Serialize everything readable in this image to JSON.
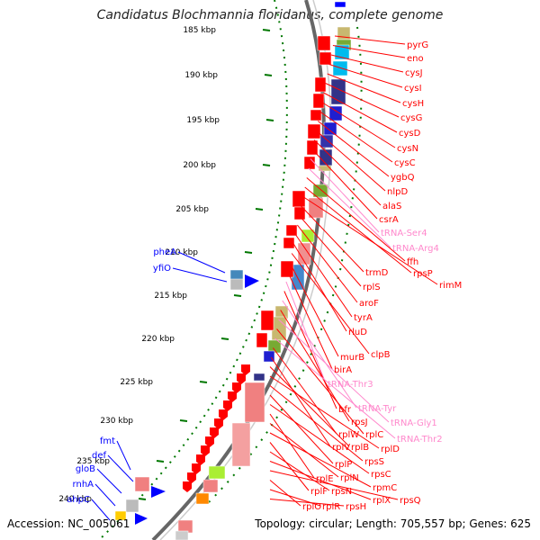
{
  "title": "Candidatus Blochmannia floridanus, complete genome",
  "accession_label": "Accession: NC_005061",
  "summary_label": "Topology: circular; Length: 705,557 bp; Genes: 625",
  "colors": {
    "red_gene": "#ff0000",
    "blue_gene": "#0000ff",
    "trna_label": "#ff88cc",
    "tick": "#007700",
    "backbone": "#888888"
  },
  "kbp_labels": [
    "185 kbp",
    "190 kbp",
    "195 kbp",
    "200 kbp",
    "205 kbp",
    "210 kbp",
    "215 kbp",
    "220 kbp",
    "225 kbp",
    "230 kbp",
    "235 kbp",
    "240 kbp"
  ],
  "right_labels": [
    {
      "text": "pyrG",
      "kind": "gene"
    },
    {
      "text": "eno",
      "kind": "gene"
    },
    {
      "text": "cysJ",
      "kind": "gene"
    },
    {
      "text": "cysI",
      "kind": "gene"
    },
    {
      "text": "cysH",
      "kind": "gene"
    },
    {
      "text": "cysG",
      "kind": "gene"
    },
    {
      "text": "cysD",
      "kind": "gene"
    },
    {
      "text": "cysN",
      "kind": "gene"
    },
    {
      "text": "cysC",
      "kind": "gene"
    },
    {
      "text": "ygbQ",
      "kind": "gene"
    },
    {
      "text": "nlpD",
      "kind": "gene"
    },
    {
      "text": "alaS",
      "kind": "gene"
    },
    {
      "text": "csrA",
      "kind": "gene"
    },
    {
      "text": "tRNA-Ser4",
      "kind": "trna"
    },
    {
      "text": "tRNA-Arg4",
      "kind": "trna"
    },
    {
      "text": "ffh",
      "kind": "gene"
    },
    {
      "text": "rpsP",
      "kind": "gene"
    },
    {
      "text": "rimM",
      "kind": "gene"
    },
    {
      "text": "trmD",
      "kind": "gene"
    },
    {
      "text": "rplS",
      "kind": "gene"
    },
    {
      "text": "aroF",
      "kind": "gene"
    },
    {
      "text": "tyrA",
      "kind": "gene"
    },
    {
      "text": "rluD",
      "kind": "gene"
    },
    {
      "text": "clpB",
      "kind": "gene"
    },
    {
      "text": "murB",
      "kind": "gene"
    },
    {
      "text": "birA",
      "kind": "gene"
    },
    {
      "text": "tRNA-Thr3",
      "kind": "trna"
    },
    {
      "text": "bfr",
      "kind": "gene"
    },
    {
      "text": "tRNA-Tyr",
      "kind": "trna"
    },
    {
      "text": "rpsJ",
      "kind": "gene"
    },
    {
      "text": "tRNA-Gly1",
      "kind": "trna"
    },
    {
      "text": "rplC",
      "kind": "gene"
    },
    {
      "text": "tRNA-Thr2",
      "kind": "trna"
    },
    {
      "text": "rplW",
      "kind": "gene"
    },
    {
      "text": "rplV",
      "kind": "gene"
    },
    {
      "text": "rplB",
      "kind": "gene"
    },
    {
      "text": "rplD",
      "kind": "gene"
    },
    {
      "text": "rpsS",
      "kind": "gene"
    },
    {
      "text": "rplP",
      "kind": "gene"
    },
    {
      "text": "rpsC",
      "kind": "gene"
    },
    {
      "text": "rplE",
      "kind": "gene"
    },
    {
      "text": "rplN",
      "kind": "gene"
    },
    {
      "text": "rpmC",
      "kind": "gene"
    },
    {
      "text": "rplF",
      "kind": "gene"
    },
    {
      "text": "rpsN",
      "kind": "gene"
    },
    {
      "text": "rplX",
      "kind": "gene"
    },
    {
      "text": "rpsQ",
      "kind": "gene"
    },
    {
      "text": "rplO",
      "kind": "gene"
    },
    {
      "text": "rplR",
      "kind": "gene"
    },
    {
      "text": "rpsH",
      "kind": "gene"
    }
  ],
  "left_labels": [
    {
      "text": "pheA",
      "kind": "gene"
    },
    {
      "text": "yfiO",
      "kind": "gene"
    },
    {
      "text": "fmt",
      "kind": "gene"
    },
    {
      "text": "def",
      "kind": "gene"
    },
    {
      "text": "gloB",
      "kind": "gene"
    },
    {
      "text": "rnhA",
      "kind": "gene"
    },
    {
      "text": "ahpC",
      "kind": "gene"
    }
  ]
}
